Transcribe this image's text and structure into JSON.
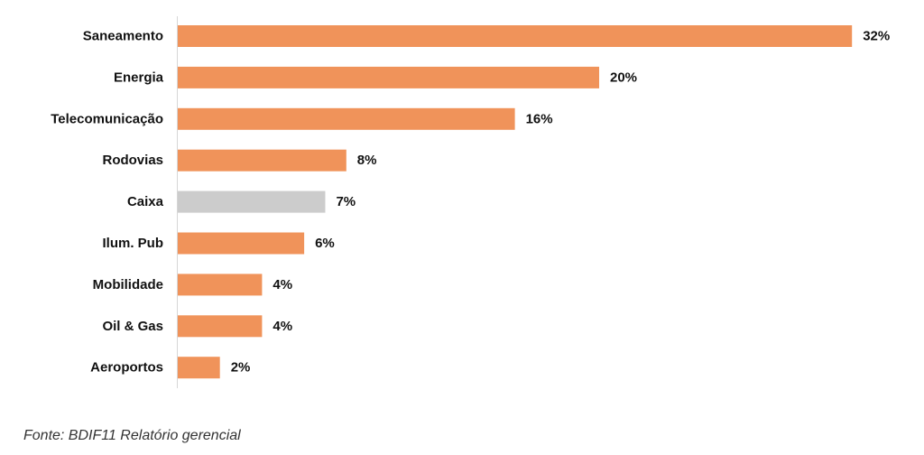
{
  "chart_data": {
    "type": "bar",
    "orientation": "horizontal",
    "categories": [
      "Saneamento",
      "Energia",
      "Telecomunicação",
      "Rodovias",
      "Caixa",
      "Ilum. Pub",
      "Mobilidade",
      "Oil & Gas",
      "Aeroportos"
    ],
    "values": [
      32,
      20,
      16,
      8,
      7,
      6,
      4,
      4,
      2
    ],
    "value_labels": [
      "32%",
      "20%",
      "16%",
      "8%",
      "7%",
      "6%",
      "4%",
      "4%",
      "2%"
    ],
    "unit": "%",
    "colors": {
      "default": "#F0935A",
      "highlight": "#CCCCCC",
      "highlight_category": "Caixa"
    },
    "grid": false,
    "legend": "none"
  },
  "source": "Fonte: BDIF11 Relatório gerencial"
}
